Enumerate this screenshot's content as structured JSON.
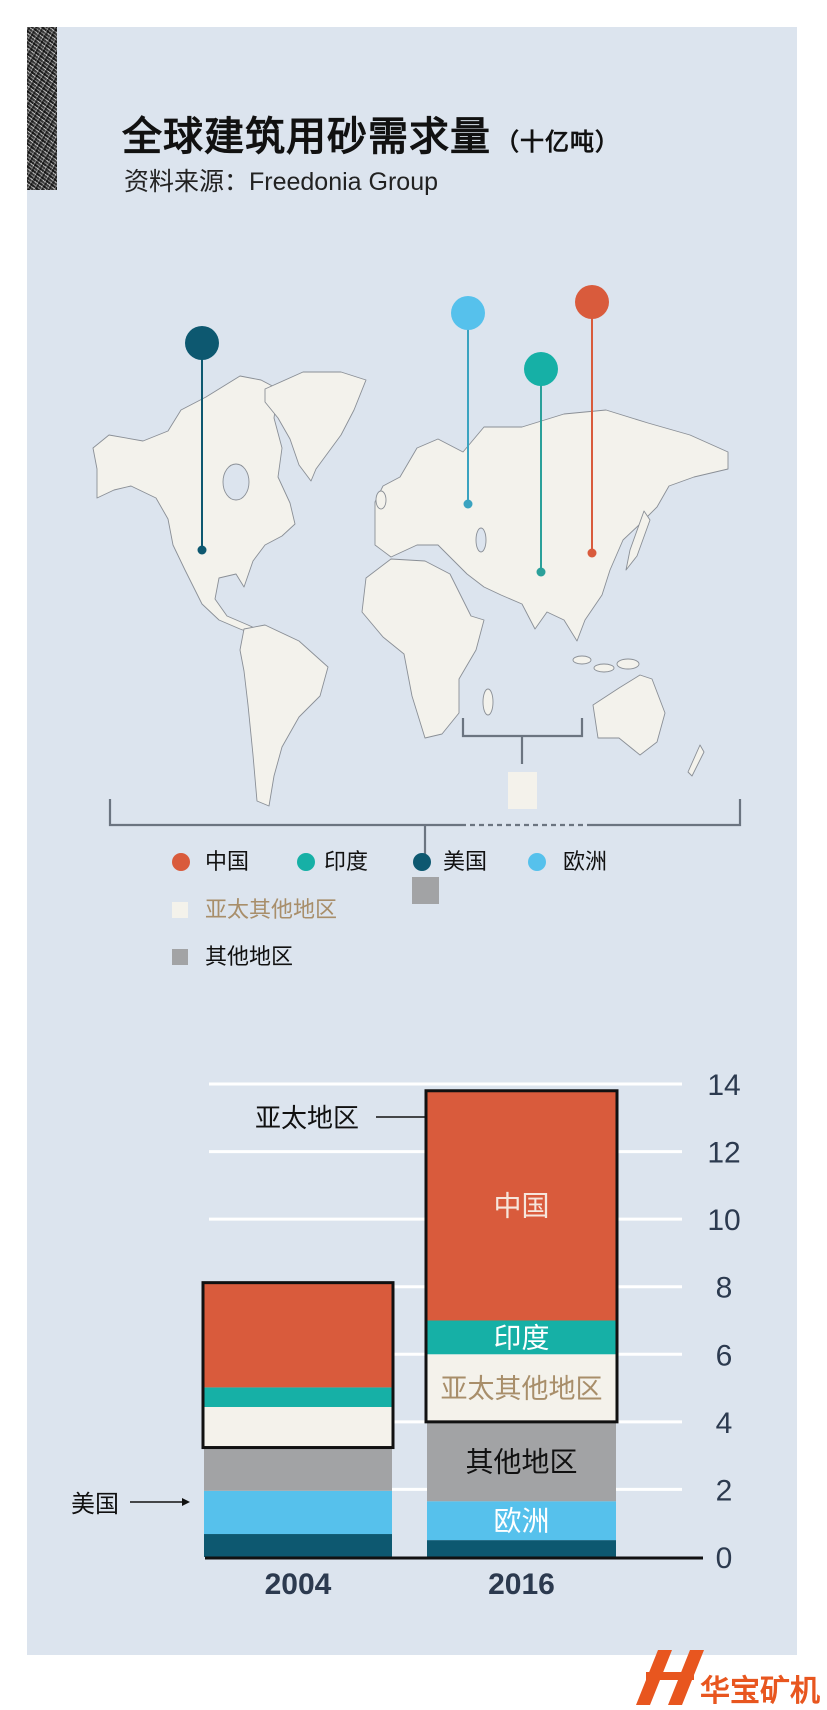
{
  "header": {
    "title": "全球建筑用砂需求量",
    "unit": "（十亿吨）",
    "source": "资料来源：Freedonia Group"
  },
  "colors": {
    "china": "#d95b3c",
    "india": "#16b0a6",
    "usa": "#0d5870",
    "europe": "#56c1ec",
    "apac_other": "#f4f2eb",
    "other": "#a2a3a5",
    "background": "#dce4ee",
    "land": "#f3f2ec"
  },
  "map": {
    "pins": [
      {
        "region": "美国",
        "color": "#0d5870"
      },
      {
        "region": "欧洲",
        "color": "#56c1ec"
      },
      {
        "region": "印度",
        "color": "#16b0a6"
      },
      {
        "region": "中国",
        "color": "#d95b3c"
      }
    ]
  },
  "legend": {
    "items": [
      {
        "label": "中国",
        "color": "#d95b3c",
        "shape": "circle"
      },
      {
        "label": "印度",
        "color": "#16b0a6",
        "shape": "circle"
      },
      {
        "label": "美国",
        "color": "#0d5870",
        "shape": "circle"
      },
      {
        "label": "欧洲",
        "color": "#56c1ec",
        "shape": "circle"
      },
      {
        "label": "亚太其他地区",
        "color": "#f4f2eb",
        "shape": "square"
      },
      {
        "label": "其他地区",
        "color": "#a2a3a5",
        "shape": "square"
      }
    ]
  },
  "chart_data": {
    "type": "bar",
    "stacked": true,
    "categories": [
      "2004",
      "2016"
    ],
    "series": [
      {
        "name": "美国",
        "values": [
          0.68,
          0.5
        ],
        "color": "#0d5870",
        "label_color": "#ffffff"
      },
      {
        "name": "欧洲",
        "values": [
          1.28,
          1.15
        ],
        "color": "#56c1ec",
        "label_color": "#ffffff"
      },
      {
        "name": "其他地区",
        "values": [
          1.28,
          2.35
        ],
        "color": "#a2a3a5",
        "label_color": "#111111"
      },
      {
        "name": "亚太其他地区",
        "values": [
          1.2,
          2.0
        ],
        "color": "#f4f2eb",
        "label_color": "#a88e6a"
      },
      {
        "name": "印度",
        "values": [
          0.58,
          1.0
        ],
        "color": "#16b0a6",
        "label_color": "#ffffff"
      },
      {
        "name": "中国",
        "values": [
          3.1,
          6.8
        ],
        "color": "#d95b3c",
        "label_color": "#f6e6dc"
      }
    ],
    "labeled_category": "2016",
    "unlabeled_series": [
      "美国"
    ],
    "ylim": [
      0,
      14
    ],
    "yticks": [
      0,
      2,
      4,
      6,
      8,
      10,
      12,
      14
    ],
    "grid": true,
    "annotations": {
      "apac": "亚太地区",
      "usa": "美国"
    }
  },
  "watermark": {
    "text": "华宝矿机"
  }
}
